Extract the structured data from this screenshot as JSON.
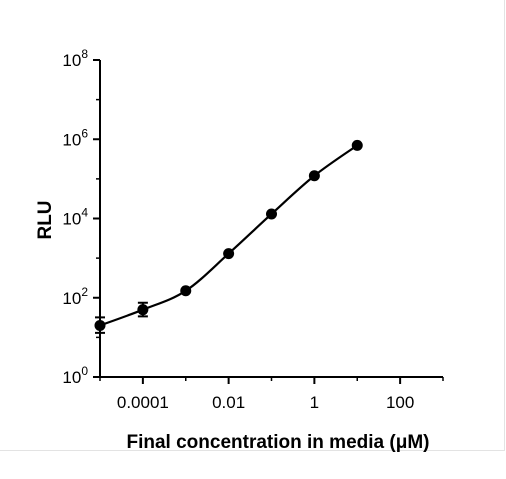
{
  "chart_data": {
    "type": "scatter",
    "title": "",
    "xlabel": "Final concentration in media (μM)",
    "ylabel": "RLU",
    "x_scale": "log",
    "y_scale": "log",
    "xlim": [
      1e-05,
      1000
    ],
    "ylim": [
      1,
      100000000
    ],
    "x_ticks": [
      {
        "value": 0.0001,
        "label": "0.0001"
      },
      {
        "value": 0.01,
        "label": "0.01"
      },
      {
        "value": 1,
        "label": "1"
      },
      {
        "value": 100,
        "label": "100"
      }
    ],
    "y_ticks": [
      {
        "value": 1,
        "base": "10",
        "exp": "0"
      },
      {
        "value": 100,
        "base": "10",
        "exp": "2"
      },
      {
        "value": 10000,
        "base": "10",
        "exp": "4"
      },
      {
        "value": 1000000,
        "base": "10",
        "exp": "6"
      },
      {
        "value": 100000000,
        "base": "10",
        "exp": "8"
      }
    ],
    "points": [
      {
        "x": 1e-05,
        "y": 20,
        "err_low": 13,
        "err_high": 32
      },
      {
        "x": 0.0001,
        "y": 50,
        "err_low": 34,
        "err_high": 75
      },
      {
        "x": 0.001,
        "y": 150
      },
      {
        "x": 0.01,
        "y": 1300
      },
      {
        "x": 0.1,
        "y": 13000
      },
      {
        "x": 1,
        "y": 120000
      },
      {
        "x": 10,
        "y": 700000
      }
    ],
    "fit_curve": true,
    "grid": false,
    "colors": {
      "marker": "#000000",
      "line": "#000000",
      "axis": "#000000"
    }
  }
}
